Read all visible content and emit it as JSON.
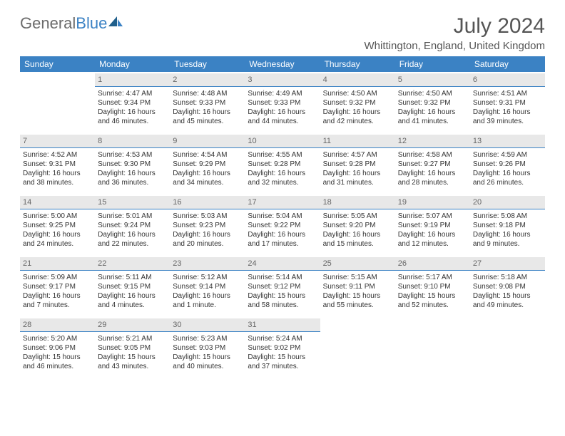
{
  "logo": {
    "text_gray": "General",
    "text_blue": "Blue"
  },
  "title": "July 2024",
  "location": "Whittington, England, United Kingdom",
  "colors": {
    "header_bg": "#3b82c4",
    "header_text": "#ffffff",
    "daynum_bg": "#e8e8e8",
    "daynum_border": "#3b82c4",
    "body_text": "#333333",
    "title_text": "#555555"
  },
  "day_names": [
    "Sunday",
    "Monday",
    "Tuesday",
    "Wednesday",
    "Thursday",
    "Friday",
    "Saturday"
  ],
  "weeks": [
    [
      {
        "day": "",
        "sunrise": "",
        "sunset": "",
        "daylight": ""
      },
      {
        "day": "1",
        "sunrise": "Sunrise: 4:47 AM",
        "sunset": "Sunset: 9:34 PM",
        "daylight": "Daylight: 16 hours and 46 minutes."
      },
      {
        "day": "2",
        "sunrise": "Sunrise: 4:48 AM",
        "sunset": "Sunset: 9:33 PM",
        "daylight": "Daylight: 16 hours and 45 minutes."
      },
      {
        "day": "3",
        "sunrise": "Sunrise: 4:49 AM",
        "sunset": "Sunset: 9:33 PM",
        "daylight": "Daylight: 16 hours and 44 minutes."
      },
      {
        "day": "4",
        "sunrise": "Sunrise: 4:50 AM",
        "sunset": "Sunset: 9:32 PM",
        "daylight": "Daylight: 16 hours and 42 minutes."
      },
      {
        "day": "5",
        "sunrise": "Sunrise: 4:50 AM",
        "sunset": "Sunset: 9:32 PM",
        "daylight": "Daylight: 16 hours and 41 minutes."
      },
      {
        "day": "6",
        "sunrise": "Sunrise: 4:51 AM",
        "sunset": "Sunset: 9:31 PM",
        "daylight": "Daylight: 16 hours and 39 minutes."
      }
    ],
    [
      {
        "day": "7",
        "sunrise": "Sunrise: 4:52 AM",
        "sunset": "Sunset: 9:31 PM",
        "daylight": "Daylight: 16 hours and 38 minutes."
      },
      {
        "day": "8",
        "sunrise": "Sunrise: 4:53 AM",
        "sunset": "Sunset: 9:30 PM",
        "daylight": "Daylight: 16 hours and 36 minutes."
      },
      {
        "day": "9",
        "sunrise": "Sunrise: 4:54 AM",
        "sunset": "Sunset: 9:29 PM",
        "daylight": "Daylight: 16 hours and 34 minutes."
      },
      {
        "day": "10",
        "sunrise": "Sunrise: 4:55 AM",
        "sunset": "Sunset: 9:28 PM",
        "daylight": "Daylight: 16 hours and 32 minutes."
      },
      {
        "day": "11",
        "sunrise": "Sunrise: 4:57 AM",
        "sunset": "Sunset: 9:28 PM",
        "daylight": "Daylight: 16 hours and 31 minutes."
      },
      {
        "day": "12",
        "sunrise": "Sunrise: 4:58 AM",
        "sunset": "Sunset: 9:27 PM",
        "daylight": "Daylight: 16 hours and 28 minutes."
      },
      {
        "day": "13",
        "sunrise": "Sunrise: 4:59 AM",
        "sunset": "Sunset: 9:26 PM",
        "daylight": "Daylight: 16 hours and 26 minutes."
      }
    ],
    [
      {
        "day": "14",
        "sunrise": "Sunrise: 5:00 AM",
        "sunset": "Sunset: 9:25 PM",
        "daylight": "Daylight: 16 hours and 24 minutes."
      },
      {
        "day": "15",
        "sunrise": "Sunrise: 5:01 AM",
        "sunset": "Sunset: 9:24 PM",
        "daylight": "Daylight: 16 hours and 22 minutes."
      },
      {
        "day": "16",
        "sunrise": "Sunrise: 5:03 AM",
        "sunset": "Sunset: 9:23 PM",
        "daylight": "Daylight: 16 hours and 20 minutes."
      },
      {
        "day": "17",
        "sunrise": "Sunrise: 5:04 AM",
        "sunset": "Sunset: 9:22 PM",
        "daylight": "Daylight: 16 hours and 17 minutes."
      },
      {
        "day": "18",
        "sunrise": "Sunrise: 5:05 AM",
        "sunset": "Sunset: 9:20 PM",
        "daylight": "Daylight: 16 hours and 15 minutes."
      },
      {
        "day": "19",
        "sunrise": "Sunrise: 5:07 AM",
        "sunset": "Sunset: 9:19 PM",
        "daylight": "Daylight: 16 hours and 12 minutes."
      },
      {
        "day": "20",
        "sunrise": "Sunrise: 5:08 AM",
        "sunset": "Sunset: 9:18 PM",
        "daylight": "Daylight: 16 hours and 9 minutes."
      }
    ],
    [
      {
        "day": "21",
        "sunrise": "Sunrise: 5:09 AM",
        "sunset": "Sunset: 9:17 PM",
        "daylight": "Daylight: 16 hours and 7 minutes."
      },
      {
        "day": "22",
        "sunrise": "Sunrise: 5:11 AM",
        "sunset": "Sunset: 9:15 PM",
        "daylight": "Daylight: 16 hours and 4 minutes."
      },
      {
        "day": "23",
        "sunrise": "Sunrise: 5:12 AM",
        "sunset": "Sunset: 9:14 PM",
        "daylight": "Daylight: 16 hours and 1 minute."
      },
      {
        "day": "24",
        "sunrise": "Sunrise: 5:14 AM",
        "sunset": "Sunset: 9:12 PM",
        "daylight": "Daylight: 15 hours and 58 minutes."
      },
      {
        "day": "25",
        "sunrise": "Sunrise: 5:15 AM",
        "sunset": "Sunset: 9:11 PM",
        "daylight": "Daylight: 15 hours and 55 minutes."
      },
      {
        "day": "26",
        "sunrise": "Sunrise: 5:17 AM",
        "sunset": "Sunset: 9:10 PM",
        "daylight": "Daylight: 15 hours and 52 minutes."
      },
      {
        "day": "27",
        "sunrise": "Sunrise: 5:18 AM",
        "sunset": "Sunset: 9:08 PM",
        "daylight": "Daylight: 15 hours and 49 minutes."
      }
    ],
    [
      {
        "day": "28",
        "sunrise": "Sunrise: 5:20 AM",
        "sunset": "Sunset: 9:06 PM",
        "daylight": "Daylight: 15 hours and 46 minutes."
      },
      {
        "day": "29",
        "sunrise": "Sunrise: 5:21 AM",
        "sunset": "Sunset: 9:05 PM",
        "daylight": "Daylight: 15 hours and 43 minutes."
      },
      {
        "day": "30",
        "sunrise": "Sunrise: 5:23 AM",
        "sunset": "Sunset: 9:03 PM",
        "daylight": "Daylight: 15 hours and 40 minutes."
      },
      {
        "day": "31",
        "sunrise": "Sunrise: 5:24 AM",
        "sunset": "Sunset: 9:02 PM",
        "daylight": "Daylight: 15 hours and 37 minutes."
      },
      {
        "day": "",
        "sunrise": "",
        "sunset": "",
        "daylight": ""
      },
      {
        "day": "",
        "sunrise": "",
        "sunset": "",
        "daylight": ""
      },
      {
        "day": "",
        "sunrise": "",
        "sunset": "",
        "daylight": ""
      }
    ]
  ]
}
